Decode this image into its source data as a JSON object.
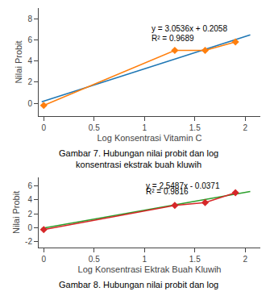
{
  "chart_data": [
    {
      "type": "line",
      "xlabel": "Log Konsentrasi Vitamin C",
      "ylabel": "Nilai Probit",
      "series": [
        {
          "type": "line",
          "line_style": "solid",
          "x": [
            -0.02,
            2.05
          ],
          "values": [
            0.144728,
            6.46568
          ]
        },
        {
          "type": "line",
          "line_style": "solid",
          "marker": "diamond",
          "x": [
            0.0,
            1.301,
            1.602,
            1.903
          ],
          "values": [
            -0.2,
            5.0,
            5.0,
            5.8
          ]
        }
      ],
      "annotations": [
        {
          "text": "y = 3.0536x + 0.2058",
          "x": 1.05,
          "y": 6.5
        },
        {
          "text": "R² = 0.9689",
          "x": 1.05,
          "y": 5.6
        }
      ],
      "caption": [
        "Gambar 7. Hubungan nilai probit dan log",
        "konsentrasi ekstrak buah kluwih"
      ],
      "xlim": [
        -0.05,
        2.15
      ],
      "ylim": [
        -1.2,
        9.0
      ],
      "xticks": [
        0,
        0.5,
        1.0,
        1.5,
        2.0
      ],
      "yticks": [
        0,
        2,
        4,
        6,
        8
      ],
      "grid": false
    },
    {
      "type": "line",
      "xlabel": "Log Konsentrasi Ektrak Buah Kluwih",
      "ylabel": "Nilai Probit",
      "series": [
        {
          "type": "line",
          "line_style": "solid",
          "x": [
            -0.02,
            2.05
          ],
          "values": [
            -0.088074,
            5.187735
          ]
        },
        {
          "type": "line",
          "line_style": "solid",
          "marker": "diamond",
          "x": [
            0.0,
            1.301,
            1.602,
            1.903
          ],
          "values": [
            -0.25,
            3.2,
            3.6,
            5.0
          ]
        }
      ],
      "annotations": [
        {
          "text": "y = 2.5487x - 0.0371",
          "x": 1.0,
          "y": 5.1
        },
        {
          "text": "R² = 0.9816",
          "x": 1.0,
          "y": 4.3
        }
      ],
      "caption": [
        "Gambar 8. Hubungan nilai probit dan log"
      ],
      "xlim": [
        -0.05,
        2.15
      ],
      "ylim": [
        -2.8,
        7.2
      ],
      "xticks": [
        0,
        0.5,
        1.0,
        1.5,
        2.0
      ],
      "yticks": [
        -2,
        0,
        2,
        4,
        6
      ],
      "grid": false
    }
  ]
}
